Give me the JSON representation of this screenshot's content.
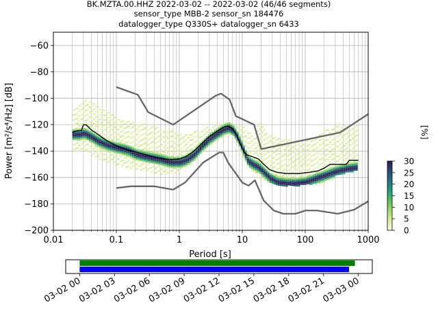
{
  "title_lines": [
    "BK.MZTA.00.HHZ   2022-03-02 -- 2022-03-02  (46/46 segments)",
    "sensor_type MBB-2 sensor_sn 184476",
    "datalogger_type Q330S+ datalogger_sn 6433"
  ],
  "chart_data": {
    "type": "heatmap",
    "xlabel": "Period [s]",
    "ylabel": "Power [m²/s⁴/Hz] [dB]",
    "xscale": "log",
    "xlim": [
      0.01,
      1000
    ],
    "ylim": [
      -200,
      -50
    ],
    "xticks": [
      0.01,
      0.1,
      1,
      10,
      100,
      1000
    ],
    "xtick_labels": [
      "0.01",
      "0.1",
      "1",
      "10",
      "100",
      "1000"
    ],
    "yticks": [
      -200,
      -180,
      -160,
      -140,
      -120,
      -100,
      -80,
      -60
    ],
    "ytick_labels": [
      "−200",
      "−180",
      "−160",
      "−140",
      "−120",
      "−100",
      "−80",
      "−60"
    ],
    "grid": true,
    "colorbar": {
      "label": "[%]",
      "min": 0,
      "max": 30,
      "ticks": [
        0,
        5,
        10,
        15,
        20,
        25,
        30
      ],
      "tick_labels": [
        "0",
        "5",
        "10",
        "15",
        "20",
        "25",
        "30"
      ],
      "colors": [
        "#fbfbdb",
        "#d9ee9d",
        "#a6d96a",
        "#5bbf5e",
        "#21a07a",
        "#23737f",
        "#2d4a7a",
        "#301a4b"
      ]
    },
    "noise_models": {
      "high": [
        [
          0.1,
          -91.5
        ],
        [
          0.22,
          -97.4
        ],
        [
          0.32,
          -110.5
        ],
        [
          0.8,
          -120
        ],
        [
          3.8,
          -98
        ],
        [
          4.6,
          -96.5
        ],
        [
          6.3,
          -101
        ],
        [
          7.9,
          -113.5
        ],
        [
          15.4,
          -120
        ],
        [
          20,
          -138.5
        ],
        [
          354.8,
          -126
        ],
        [
          1000,
          -112
        ]
      ],
      "low": [
        [
          0.1,
          -168
        ],
        [
          0.17,
          -166.7
        ],
        [
          0.4,
          -166.7
        ],
        [
          0.8,
          -169.2
        ],
        [
          1.24,
          -163.7
        ],
        [
          2.4,
          -148.6
        ],
        [
          4.3,
          -141.1
        ],
        [
          5,
          -141.1
        ],
        [
          6,
          -149
        ],
        [
          10,
          -163.8
        ],
        [
          12.6,
          -166.2
        ],
        [
          15.9,
          -162.1
        ],
        [
          21.9,
          -177.5
        ],
        [
          31.6,
          -185
        ],
        [
          45,
          -187.5
        ],
        [
          70,
          -187.5
        ],
        [
          101,
          -185
        ],
        [
          154,
          -185
        ],
        [
          328,
          -187.5
        ],
        [
          600,
          -184.4
        ],
        [
          1000,
          -178
        ]
      ]
    },
    "median": [
      [
        0.02,
        -126
      ],
      [
        0.022,
        -125
      ],
      [
        0.026,
        -124.5
      ],
      [
        0.028,
        -124.5
      ],
      [
        0.03,
        -120
      ],
      [
        0.033,
        -120
      ],
      [
        0.04,
        -124
      ],
      [
        0.05,
        -127
      ],
      [
        0.07,
        -132
      ],
      [
        0.1,
        -136
      ],
      [
        0.15,
        -139
      ],
      [
        0.2,
        -140.5
      ],
      [
        0.3,
        -143
      ],
      [
        0.5,
        -145.5
      ],
      [
        0.7,
        -146.5
      ],
      [
        1,
        -146
      ],
      [
        1.3,
        -144
      ],
      [
        1.7,
        -140
      ],
      [
        2.2,
        -135
      ],
      [
        3,
        -129
      ],
      [
        4,
        -125
      ],
      [
        5,
        -122
      ],
      [
        6,
        -121
      ],
      [
        7,
        -123
      ],
      [
        8,
        -127
      ],
      [
        9,
        -133
      ],
      [
        10,
        -138
      ],
      [
        11,
        -141.5
      ],
      [
        12,
        -143
      ],
      [
        15,
        -144.5
      ],
      [
        18,
        -146
      ],
      [
        22,
        -150
      ],
      [
        27,
        -154
      ],
      [
        35,
        -156
      ],
      [
        50,
        -157
      ],
      [
        80,
        -157
      ],
      [
        120,
        -156
      ],
      [
        160,
        -155
      ],
      [
        200,
        -153
      ],
      [
        250,
        -150
      ],
      [
        350,
        -150
      ],
      [
        450,
        -150
      ],
      [
        500,
        -147
      ],
      [
        700,
        -147
      ]
    ],
    "psd_cloud": [
      {
        "period": 0.02,
        "power": [
          -140,
          -106
        ],
        "peak": -127
      },
      {
        "period": 0.025,
        "power": [
          -140,
          -104
        ],
        "peak": -127
      },
      {
        "period": 0.03,
        "power": [
          -140,
          -101
        ],
        "peak": -126
      },
      {
        "period": 0.04,
        "power": [
          -143,
          -103
        ],
        "peak": -129
      },
      {
        "period": 0.05,
        "power": [
          -145,
          -106
        ],
        "peak": -132
      },
      {
        "period": 0.07,
        "power": [
          -148,
          -110
        ],
        "peak": -135
      },
      {
        "period": 0.1,
        "power": [
          -150,
          -114
        ],
        "peak": -137
      },
      {
        "period": 0.15,
        "power": [
          -153,
          -117
        ],
        "peak": -139
      },
      {
        "period": 0.2,
        "power": [
          -154,
          -118
        ],
        "peak": -142
      },
      {
        "period": 0.3,
        "power": [
          -155,
          -120
        ],
        "peak": -144
      },
      {
        "period": 0.5,
        "power": [
          -157,
          -122
        ],
        "peak": -146
      },
      {
        "period": 0.7,
        "power": [
          -157,
          -124
        ],
        "peak": -148
      },
      {
        "period": 1,
        "power": [
          -155,
          -127
        ],
        "peak": -148
      },
      {
        "period": 1.3,
        "power": [
          -152,
          -127
        ],
        "peak": -146
      },
      {
        "period": 1.7,
        "power": [
          -147,
          -125
        ],
        "peak": -142
      },
      {
        "period": 2.2,
        "power": [
          -142,
          -122
        ],
        "peak": -136
      },
      {
        "period": 3,
        "power": [
          -136,
          -121
        ],
        "peak": -130
      },
      {
        "period": 4,
        "power": [
          -131,
          -119
        ],
        "peak": -126
      },
      {
        "period": 5,
        "power": [
          -128,
          -119
        ],
        "peak": -123
      },
      {
        "period": 6,
        "power": [
          -127,
          -118
        ],
        "peak": -122
      },
      {
        "period": 7,
        "power": [
          -130,
          -120
        ],
        "peak": -124
      },
      {
        "period": 8,
        "power": [
          -135,
          -120
        ],
        "peak": -128
      },
      {
        "period": 10,
        "power": [
          -146,
          -121
        ],
        "peak": -138
      },
      {
        "period": 12,
        "power": [
          -152,
          -125
        ],
        "peak": -147
      },
      {
        "period": 15,
        "power": [
          -156,
          -128
        ],
        "peak": -150
      },
      {
        "period": 18,
        "power": [
          -158,
          -118
        ],
        "peak": -152
      },
      {
        "period": 22,
        "power": [
          -162,
          -124
        ],
        "peak": -156
      },
      {
        "period": 27,
        "power": [
          -164,
          -128
        ],
        "peak": -160
      },
      {
        "period": 35,
        "power": [
          -166,
          -130
        ],
        "peak": -163
      },
      {
        "period": 50,
        "power": [
          -166,
          -131
        ],
        "peak": -164
      },
      {
        "period": 70,
        "power": [
          -166,
          -132
        ],
        "peak": -164
      },
      {
        "period": 100,
        "power": [
          -165,
          -132
        ],
        "peak": -163
      },
      {
        "period": 150,
        "power": [
          -164,
          -127
        ],
        "peak": -160
      },
      {
        "period": 200,
        "power": [
          -163,
          -124
        ],
        "peak": -158
      },
      {
        "period": 300,
        "power": [
          -158,
          -121
        ],
        "peak": -155
      },
      {
        "period": 450,
        "power": [
          -156,
          -120
        ],
        "peak": -153
      },
      {
        "period": 650,
        "power": [
          -154,
          -120
        ],
        "peak": -152
      }
    ],
    "timeline": {
      "xtick_labels": [
        "03-02 00",
        "03-02 03",
        "03-02 06",
        "03-02 09",
        "03-02 12",
        "03-02 15",
        "03-02 18",
        "03-02 21",
        "03-03 00"
      ],
      "start_hours": -1.2,
      "end_hours": 25.2,
      "bars": [
        {
          "color": "#008000",
          "start": 0,
          "end": 23.7
        },
        {
          "color": "#0000ff",
          "start": 0,
          "end": 23.2
        }
      ]
    }
  }
}
